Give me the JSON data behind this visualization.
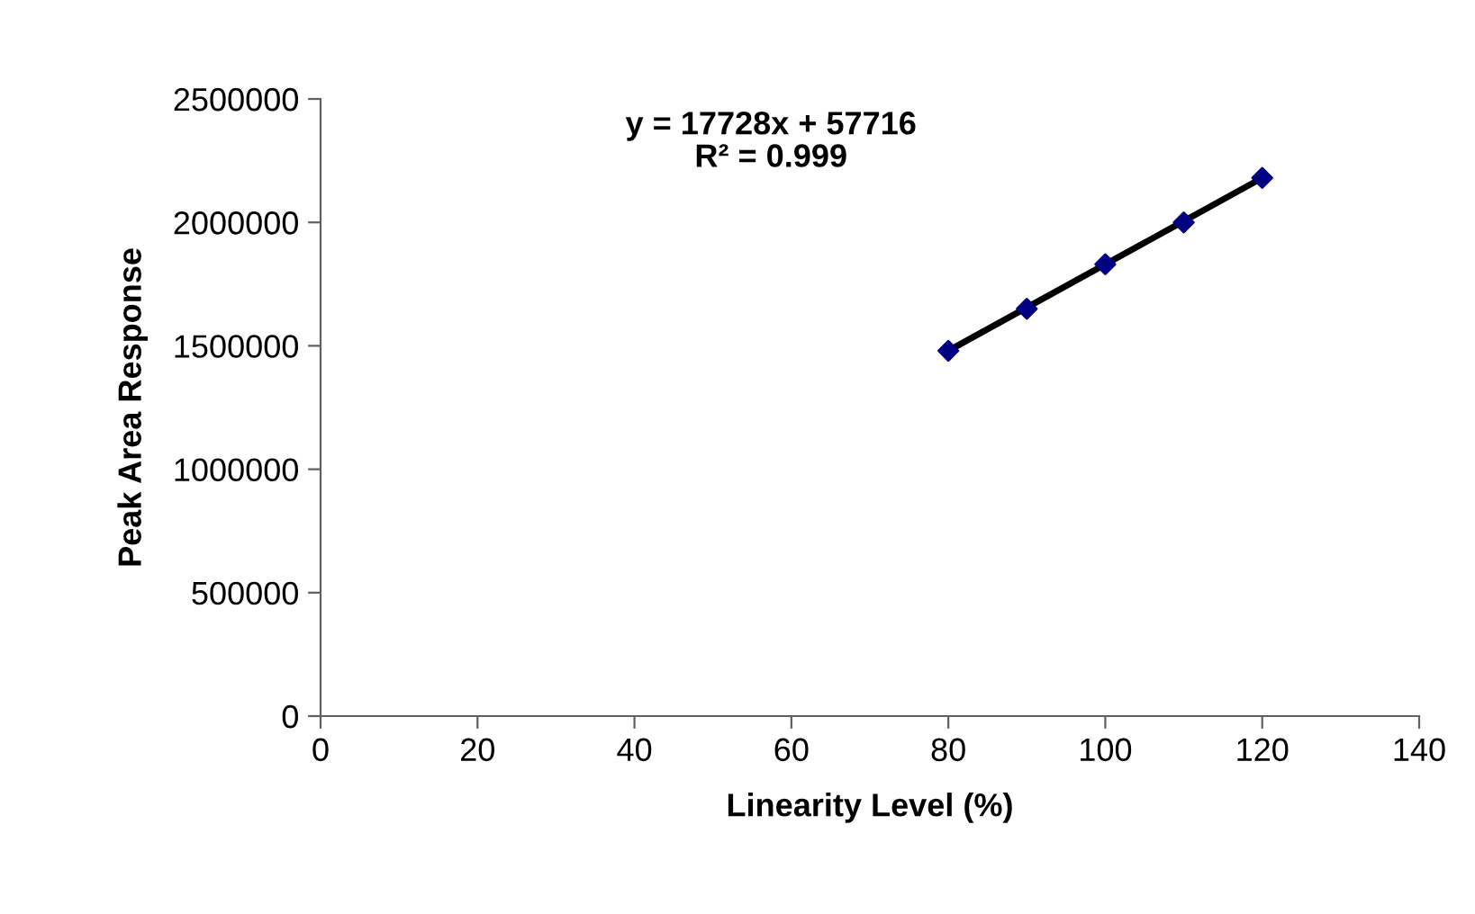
{
  "chart_data": {
    "type": "scatter",
    "xlabel": "Linearity Level (%)",
    "ylabel": "Peak Area Response",
    "x": [
      80,
      90,
      100,
      110,
      120
    ],
    "series": [
      {
        "color": "#000080",
        "values": [
          1480000,
          1650000,
          1830000,
          2000000,
          2180000
        ],
        "marker": "diamond"
      },
      {
        "type": "line",
        "color": "#000000",
        "x": [
          80,
          120
        ],
        "values": [
          1480000,
          2180000
        ],
        "marker": "none",
        "line_style": "solid"
      }
    ],
    "annotations": [
      "y = 17728x + 57716\nR² = 0.999"
    ],
    "xlim": [
      0,
      140
    ],
    "xticks": [
      0,
      20,
      40,
      60,
      80,
      100,
      120,
      140
    ],
    "ylim": [
      0,
      2500000
    ],
    "yticks": [
      0,
      500000,
      1000000,
      1500000,
      2000000,
      2500000
    ],
    "grid": false,
    "legend": false
  }
}
